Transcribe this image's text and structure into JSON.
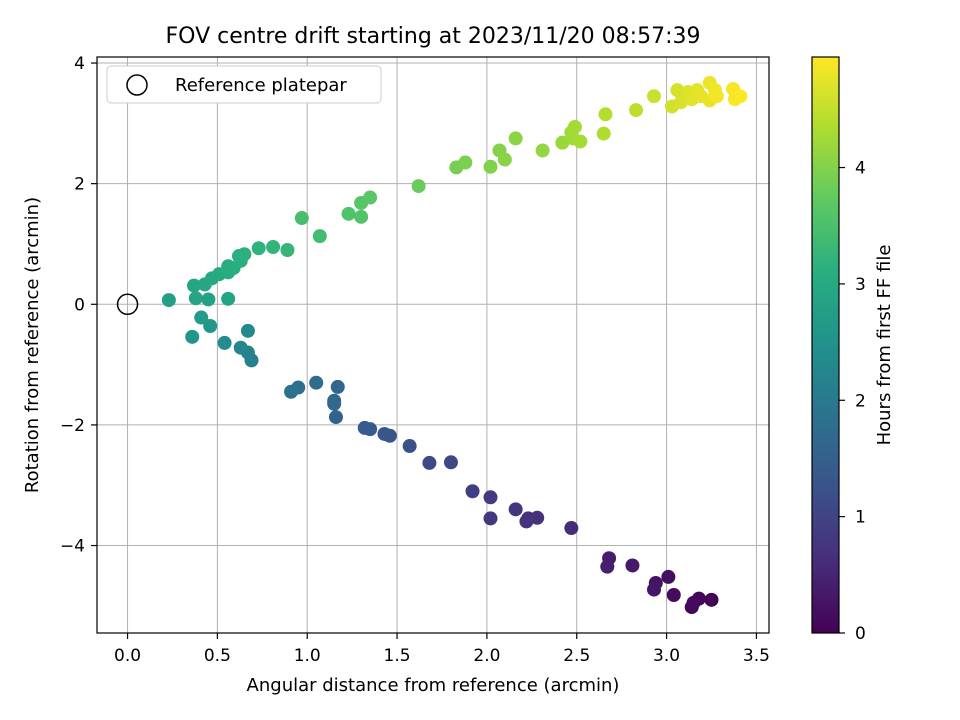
{
  "chart_data": {
    "type": "scatter",
    "title": "FOV centre drift starting at 2023/11/20 08:57:39",
    "xlabel": "Angular distance from reference (arcmin)",
    "ylabel": "Rotation from reference (arcmin)",
    "xlim": [
      -0.17,
      3.57
    ],
    "ylim": [
      -5.45,
      4.1
    ],
    "xticks": [
      0.0,
      0.5,
      1.0,
      1.5,
      2.0,
      2.5,
      3.0,
      3.5
    ],
    "yticks": [
      -4,
      -2,
      0,
      2,
      4
    ],
    "xtick_labels": [
      "0.0",
      "0.5",
      "1.0",
      "1.5",
      "2.0",
      "2.5",
      "3.0",
      "3.5"
    ],
    "ytick_labels": [
      "−4",
      "−2",
      "0",
      "2",
      "4"
    ],
    "grid": true,
    "legend": {
      "placement": "top-left",
      "label": "Reference platepar"
    },
    "reference_point": {
      "x": 0.0,
      "y": 0.0
    },
    "colorbar": {
      "label": "Hours from first FF file",
      "colormap": "viridis",
      "range": [
        0,
        4.95
      ],
      "ticks": [
        0,
        1,
        2,
        3,
        4
      ],
      "tick_labels": [
        "0",
        "1",
        "2",
        "3",
        "4"
      ]
    },
    "points": [
      {
        "x": 3.25,
        "y": -4.9,
        "t": 0.05
      },
      {
        "x": 3.18,
        "y": -4.88,
        "t": 0.08
      },
      {
        "x": 3.14,
        "y": -5.02,
        "t": 0.1
      },
      {
        "x": 3.15,
        "y": -4.95,
        "t": 0.12
      },
      {
        "x": 3.04,
        "y": -4.82,
        "t": 0.15
      },
      {
        "x": 3.01,
        "y": -4.52,
        "t": 0.2
      },
      {
        "x": 2.94,
        "y": -4.62,
        "t": 0.25
      },
      {
        "x": 2.93,
        "y": -4.73,
        "t": 0.28
      },
      {
        "x": 2.81,
        "y": -4.33,
        "t": 0.35
      },
      {
        "x": 2.68,
        "y": -4.21,
        "t": 0.4
      },
      {
        "x": 2.67,
        "y": -4.35,
        "t": 0.42
      },
      {
        "x": 2.47,
        "y": -3.71,
        "t": 0.6
      },
      {
        "x": 2.28,
        "y": -3.54,
        "t": 0.68
      },
      {
        "x": 2.23,
        "y": -3.55,
        "t": 0.7
      },
      {
        "x": 2.22,
        "y": -3.6,
        "t": 0.72
      },
      {
        "x": 2.16,
        "y": -3.4,
        "t": 0.75
      },
      {
        "x": 2.02,
        "y": -3.55,
        "t": 0.82
      },
      {
        "x": 2.02,
        "y": -3.2,
        "t": 0.86
      },
      {
        "x": 1.92,
        "y": -3.1,
        "t": 0.92
      },
      {
        "x": 1.8,
        "y": -2.62,
        "t": 1.05
      },
      {
        "x": 1.68,
        "y": -2.63,
        "t": 1.1
      },
      {
        "x": 1.57,
        "y": -2.35,
        "t": 1.2
      },
      {
        "x": 1.46,
        "y": -2.18,
        "t": 1.28
      },
      {
        "x": 1.43,
        "y": -2.15,
        "t": 1.32
      },
      {
        "x": 1.35,
        "y": -2.07,
        "t": 1.38
      },
      {
        "x": 1.32,
        "y": -2.05,
        "t": 1.42
      },
      {
        "x": 1.16,
        "y": -1.87,
        "t": 1.55
      },
      {
        "x": 1.17,
        "y": -1.37,
        "t": 1.62
      },
      {
        "x": 1.15,
        "y": -1.6,
        "t": 1.65
      },
      {
        "x": 1.15,
        "y": -1.65,
        "t": 1.66
      },
      {
        "x": 1.05,
        "y": -1.3,
        "t": 1.75
      },
      {
        "x": 0.95,
        "y": -1.38,
        "t": 1.82
      },
      {
        "x": 0.91,
        "y": -1.45,
        "t": 1.86
      },
      {
        "x": 0.69,
        "y": -0.93,
        "t": 2.15
      },
      {
        "x": 0.67,
        "y": -0.8,
        "t": 2.2
      },
      {
        "x": 0.63,
        "y": -0.72,
        "t": 2.25
      },
      {
        "x": 0.67,
        "y": -0.44,
        "t": 2.32
      },
      {
        "x": 0.54,
        "y": -0.64,
        "t": 2.4
      },
      {
        "x": 0.36,
        "y": -0.54,
        "t": 2.55
      },
      {
        "x": 0.46,
        "y": -0.36,
        "t": 2.62
      },
      {
        "x": 0.41,
        "y": -0.22,
        "t": 2.68
      },
      {
        "x": 0.23,
        "y": 0.07,
        "t": 2.78
      },
      {
        "x": 0.45,
        "y": 0.08,
        "t": 2.82
      },
      {
        "x": 0.56,
        "y": 0.09,
        "t": 2.85
      },
      {
        "x": 0.38,
        "y": 0.1,
        "t": 2.88
      },
      {
        "x": 0.37,
        "y": 0.31,
        "t": 2.9
      },
      {
        "x": 0.43,
        "y": 0.33,
        "t": 2.92
      },
      {
        "x": 0.47,
        "y": 0.43,
        "t": 2.96
      },
      {
        "x": 0.51,
        "y": 0.5,
        "t": 3.0
      },
      {
        "x": 0.56,
        "y": 0.53,
        "t": 3.02
      },
      {
        "x": 0.59,
        "y": 0.6,
        "t": 3.05
      },
      {
        "x": 0.56,
        "y": 0.63,
        "t": 3.07
      },
      {
        "x": 0.63,
        "y": 0.72,
        "t": 3.1
      },
      {
        "x": 0.62,
        "y": 0.8,
        "t": 3.12
      },
      {
        "x": 0.65,
        "y": 0.83,
        "t": 3.14
      },
      {
        "x": 0.73,
        "y": 0.93,
        "t": 3.18
      },
      {
        "x": 0.81,
        "y": 0.95,
        "t": 3.22
      },
      {
        "x": 0.89,
        "y": 0.9,
        "t": 3.26
      },
      {
        "x": 0.97,
        "y": 1.43,
        "t": 3.45
      },
      {
        "x": 1.07,
        "y": 1.13,
        "t": 3.4
      },
      {
        "x": 1.23,
        "y": 1.5,
        "t": 3.55
      },
      {
        "x": 1.3,
        "y": 1.45,
        "t": 3.58
      },
      {
        "x": 1.3,
        "y": 1.68,
        "t": 3.62
      },
      {
        "x": 1.35,
        "y": 1.77,
        "t": 3.66
      },
      {
        "x": 1.62,
        "y": 1.96,
        "t": 3.78
      },
      {
        "x": 1.83,
        "y": 2.27,
        "t": 3.9
      },
      {
        "x": 1.88,
        "y": 2.35,
        "t": 3.94
      },
      {
        "x": 2.02,
        "y": 2.28,
        "t": 3.98
      },
      {
        "x": 2.07,
        "y": 2.55,
        "t": 4.02
      },
      {
        "x": 2.1,
        "y": 2.4,
        "t": 4.04
      },
      {
        "x": 2.16,
        "y": 2.75,
        "t": 4.08
      },
      {
        "x": 2.31,
        "y": 2.55,
        "t": 4.12
      },
      {
        "x": 2.42,
        "y": 2.68,
        "t": 4.18
      },
      {
        "x": 2.47,
        "y": 2.85,
        "t": 4.22
      },
      {
        "x": 2.48,
        "y": 2.75,
        "t": 4.24
      },
      {
        "x": 2.49,
        "y": 2.94,
        "t": 4.26
      },
      {
        "x": 2.52,
        "y": 2.7,
        "t": 4.28
      },
      {
        "x": 2.65,
        "y": 2.83,
        "t": 4.34
      },
      {
        "x": 2.66,
        "y": 3.15,
        "t": 4.38
      },
      {
        "x": 2.83,
        "y": 3.22,
        "t": 4.46
      },
      {
        "x": 2.93,
        "y": 3.45,
        "t": 4.55
      },
      {
        "x": 3.03,
        "y": 3.28,
        "t": 4.6
      },
      {
        "x": 3.06,
        "y": 3.55,
        "t": 4.64
      },
      {
        "x": 3.08,
        "y": 3.35,
        "t": 4.66
      },
      {
        "x": 3.12,
        "y": 3.52,
        "t": 4.7
      },
      {
        "x": 3.14,
        "y": 3.4,
        "t": 4.72
      },
      {
        "x": 3.17,
        "y": 3.55,
        "t": 4.75
      },
      {
        "x": 3.19,
        "y": 3.45,
        "t": 4.78
      },
      {
        "x": 3.24,
        "y": 3.38,
        "t": 4.8
      },
      {
        "x": 3.24,
        "y": 3.67,
        "t": 4.83
      },
      {
        "x": 3.27,
        "y": 3.55,
        "t": 4.86
      },
      {
        "x": 3.28,
        "y": 3.45,
        "t": 4.88
      },
      {
        "x": 3.37,
        "y": 3.57,
        "t": 4.9
      },
      {
        "x": 3.38,
        "y": 3.4,
        "t": 4.92
      },
      {
        "x": 3.41,
        "y": 3.45,
        "t": 4.94
      }
    ]
  }
}
